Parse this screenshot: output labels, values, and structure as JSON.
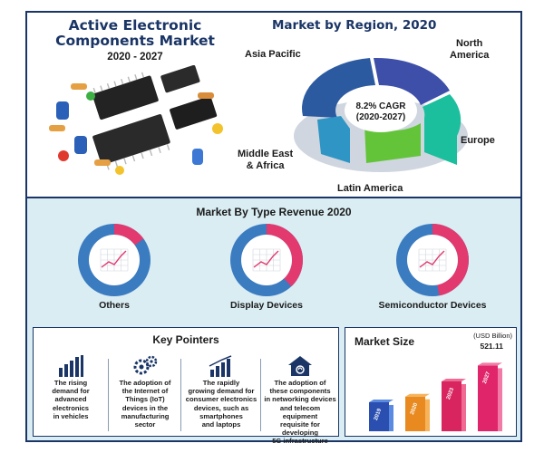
{
  "header": {
    "title_line1": "Active Electronic",
    "title_line2": "Components Market",
    "years": "2020 - 2027"
  },
  "region": {
    "title": "Market by Region, 2020",
    "cagr_line1": "8.2% CAGR",
    "cagr_line2": "(2020-2027)",
    "labels": {
      "asia_pacific": "Asia Pacific",
      "north_america_1": "North",
      "north_america_2": "America",
      "europe": "Europe",
      "latin_america": "Latin America",
      "mea_1": "Middle East",
      "mea_2": "& Africa"
    }
  },
  "type_section": {
    "title": "Market By Type Revenue 2020",
    "labels": [
      "Others",
      "Display Devices",
      "Semiconductor Devices"
    ]
  },
  "key_pointers": {
    "title": "Key Pointers",
    "items": [
      {
        "icon": "bar-chart-icon",
        "text": [
          "The rising",
          "demand for",
          "advanced",
          "electronics",
          "in vehicles"
        ]
      },
      {
        "icon": "gears-icon",
        "text": [
          "The adoption of",
          "the Internet of",
          "Things (IoT)",
          "devices in the",
          "manufacturing",
          "sector"
        ]
      },
      {
        "icon": "growth-chart-icon",
        "text": [
          "The rapidly",
          "growing demand for",
          "consumer electronics",
          "devices, such as",
          "smartphones",
          "and laptops"
        ]
      },
      {
        "icon": "house-network-icon",
        "text": [
          "The adoption of",
          "these components",
          "in networking devices",
          "and telecom equipment",
          "requisite for developing",
          "5G infrastructure"
        ]
      }
    ]
  },
  "market_size": {
    "title": "Market Size",
    "unit": "(USD Billion)",
    "value_label": "521.11"
  },
  "colors": {
    "navy": "#1a3566",
    "pink": "#e2396f",
    "donut_blue": "#3b7bbf",
    "panel_bg": "#d9edf3"
  },
  "chart_data": [
    {
      "type": "pie",
      "title": "Market by Region, 2020",
      "categories": [
        "North America",
        "Europe",
        "Latin America",
        "Middle East & Africa",
        "Asia Pacific"
      ],
      "values": [
        22,
        20,
        16,
        10,
        32
      ],
      "annotation": "8.2% CAGR (2020-2027)",
      "colors": [
        "#3d4fa8",
        "#1bbf9d",
        "#63c43a",
        "#2f95c4",
        "#2c5aa0"
      ]
    },
    {
      "type": "pie",
      "title": "Market By Type Revenue 2020",
      "charts": [
        {
          "label": "Others",
          "values": [
            0.15,
            0.85
          ]
        },
        {
          "label": "Display Devices",
          "values": [
            0.38,
            0.62
          ]
        },
        {
          "label": "Semiconductor Devices",
          "values": [
            0.47,
            0.53
          ]
        }
      ]
    },
    {
      "type": "bar",
      "title": "Market Size",
      "categories": [
        "2019",
        "2020",
        "2023",
        "2027"
      ],
      "values": [
        230,
        275,
        395,
        521.11
      ],
      "ylabel": "(USD Billion)",
      "data_labels": {
        "2027": "521.11"
      }
    }
  ]
}
